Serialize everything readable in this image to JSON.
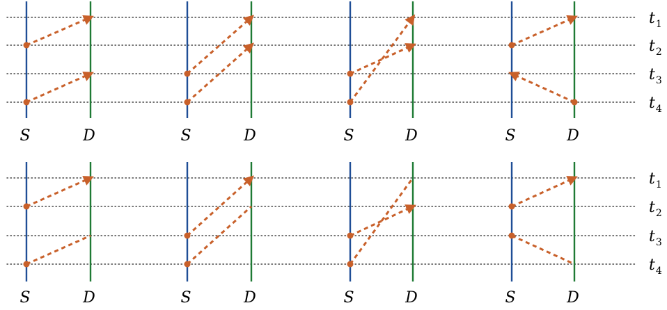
{
  "time_labels": [
    {
      "main": "t",
      "sub": "1"
    },
    {
      "main": "t",
      "sub": "2"
    },
    {
      "main": "t",
      "sub": "3"
    },
    {
      "main": "t",
      "sub": "4"
    }
  ],
  "node_labels": {
    "source": "S",
    "destination": "D"
  },
  "colors": {
    "source_line": "#1f4e96",
    "destination_line": "#1e7a34",
    "message": "#c8602a",
    "gridline": "#222222"
  },
  "rows": [
    {
      "panels": [
        {
          "messages": [
            {
              "from": "S",
              "start": 2,
              "end": 1,
              "arrow": true
            },
            {
              "from": "S",
              "start": 4,
              "end": 3,
              "arrow": true
            }
          ]
        },
        {
          "messages": [
            {
              "from": "S",
              "start": 3,
              "end": 1,
              "arrow": true
            },
            {
              "from": "S",
              "start": 4,
              "end": 2,
              "arrow": true
            }
          ]
        },
        {
          "messages": [
            {
              "from": "S",
              "start": 3,
              "end": 2,
              "arrow": true
            },
            {
              "from": "S",
              "start": 4,
              "end": 1,
              "arrow": true
            }
          ]
        },
        {
          "messages": [
            {
              "from": "S",
              "start": 2,
              "end": 1,
              "arrow": true
            },
            {
              "from": "D",
              "start": 4,
              "end": 3,
              "arrow": true
            }
          ]
        }
      ]
    },
    {
      "panels": [
        {
          "messages": [
            {
              "from": "S",
              "start": 2,
              "end": 1,
              "arrow": true
            },
            {
              "from": "S",
              "start": 4,
              "end": 3,
              "arrow": false
            }
          ]
        },
        {
          "messages": [
            {
              "from": "S",
              "start": 3,
              "end": 1,
              "arrow": true
            },
            {
              "from": "S",
              "start": 4,
              "end": 2,
              "arrow": false
            }
          ]
        },
        {
          "messages": [
            {
              "from": "S",
              "start": 3,
              "end": 2,
              "arrow": true
            },
            {
              "from": "S",
              "start": 4,
              "end": 1,
              "arrow": false
            }
          ]
        },
        {
          "messages": [
            {
              "from": "S",
              "start": 2,
              "end": 1,
              "arrow": true
            },
            {
              "from": "S",
              "start": 3,
              "end": 4,
              "arrow": false
            }
          ]
        }
      ]
    }
  ]
}
